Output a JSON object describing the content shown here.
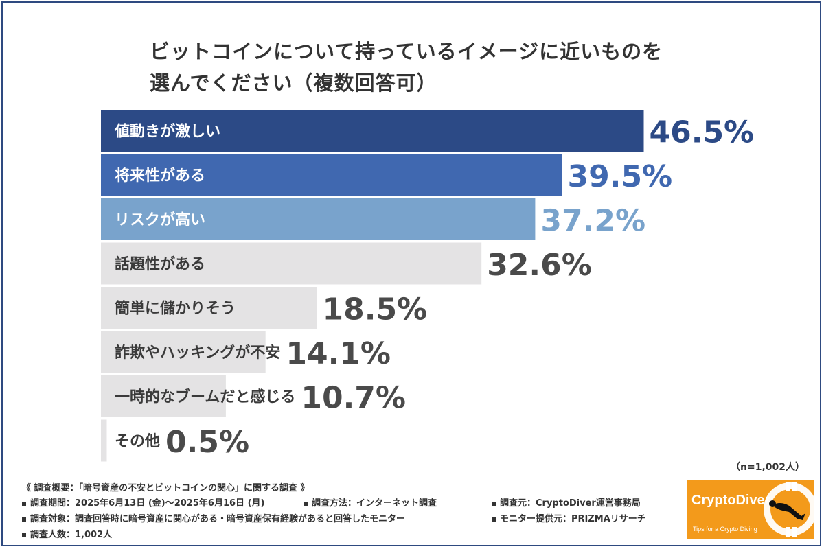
{
  "title": {
    "line1": "ビットコインについて持っているイメージに近いものを",
    "line2": "選んでください（複数回答可）"
  },
  "chart_data": {
    "type": "bar",
    "orientation": "horizontal",
    "categories": [
      "値動きが激しい",
      "将来性がある",
      "リスクが高い",
      "話題性がある",
      "簡単に儲かりそう",
      "詐欺やハッキングが不安",
      "一時的なブームだと感じる",
      "その他"
    ],
    "values": [
      46.5,
      39.5,
      37.2,
      32.6,
      18.5,
      14.1,
      10.7,
      0.5
    ],
    "value_labels": [
      "46.5%",
      "39.5%",
      "37.2%",
      "32.6%",
      "18.5%",
      "14.1%",
      "10.7%",
      "0.5%"
    ],
    "unit": "%",
    "xlim": [
      0,
      100
    ],
    "colors": {
      "bars": [
        "#2c4a86",
        "#4068b0",
        "#79a3cc",
        "#e4e3e4",
        "#e4e3e4",
        "#e4e3e4",
        "#e4e3e4",
        "#e4e3e4"
      ],
      "value_text": [
        "#2c4a86",
        "#4068b0",
        "#79a3cc",
        "#4a4a4a",
        "#4a4a4a",
        "#4a4a4a",
        "#4a4a4a",
        "#4a4a4a"
      ],
      "label_text": [
        "#ffffff",
        "#ffffff",
        "#ffffff",
        "#3a3a3a",
        "#3a3a3a",
        "#3a3a3a",
        "#3a3a3a",
        "#3a3a3a"
      ]
    },
    "grid": false,
    "legend": "none"
  },
  "sample_size": "（n=1,002人）",
  "footer": {
    "heading": "《 調査概要：「暗号資産の不安とビットコインの関心」に関する調査 》",
    "period": "調査期間：2025年6月13日 (金)〜2025年6月16日 (月)",
    "method": "調査方法：インターネット調査",
    "source": "調査元：CryptoDiver運営事務局",
    "target": "調査対象：調査回答時に暗号資産に関心がある・暗号資産保有経験があると回答したモニター",
    "provider": "モニター提供元：PRIZMAリサーチ",
    "respondents": "調査人数：1,002人"
  },
  "logo": {
    "brand": "CryptoDiver",
    "tagline": "Tips for a Crypto Diving",
    "background": "#f39a1b",
    "icon": "bitcoin-diver-icon"
  }
}
